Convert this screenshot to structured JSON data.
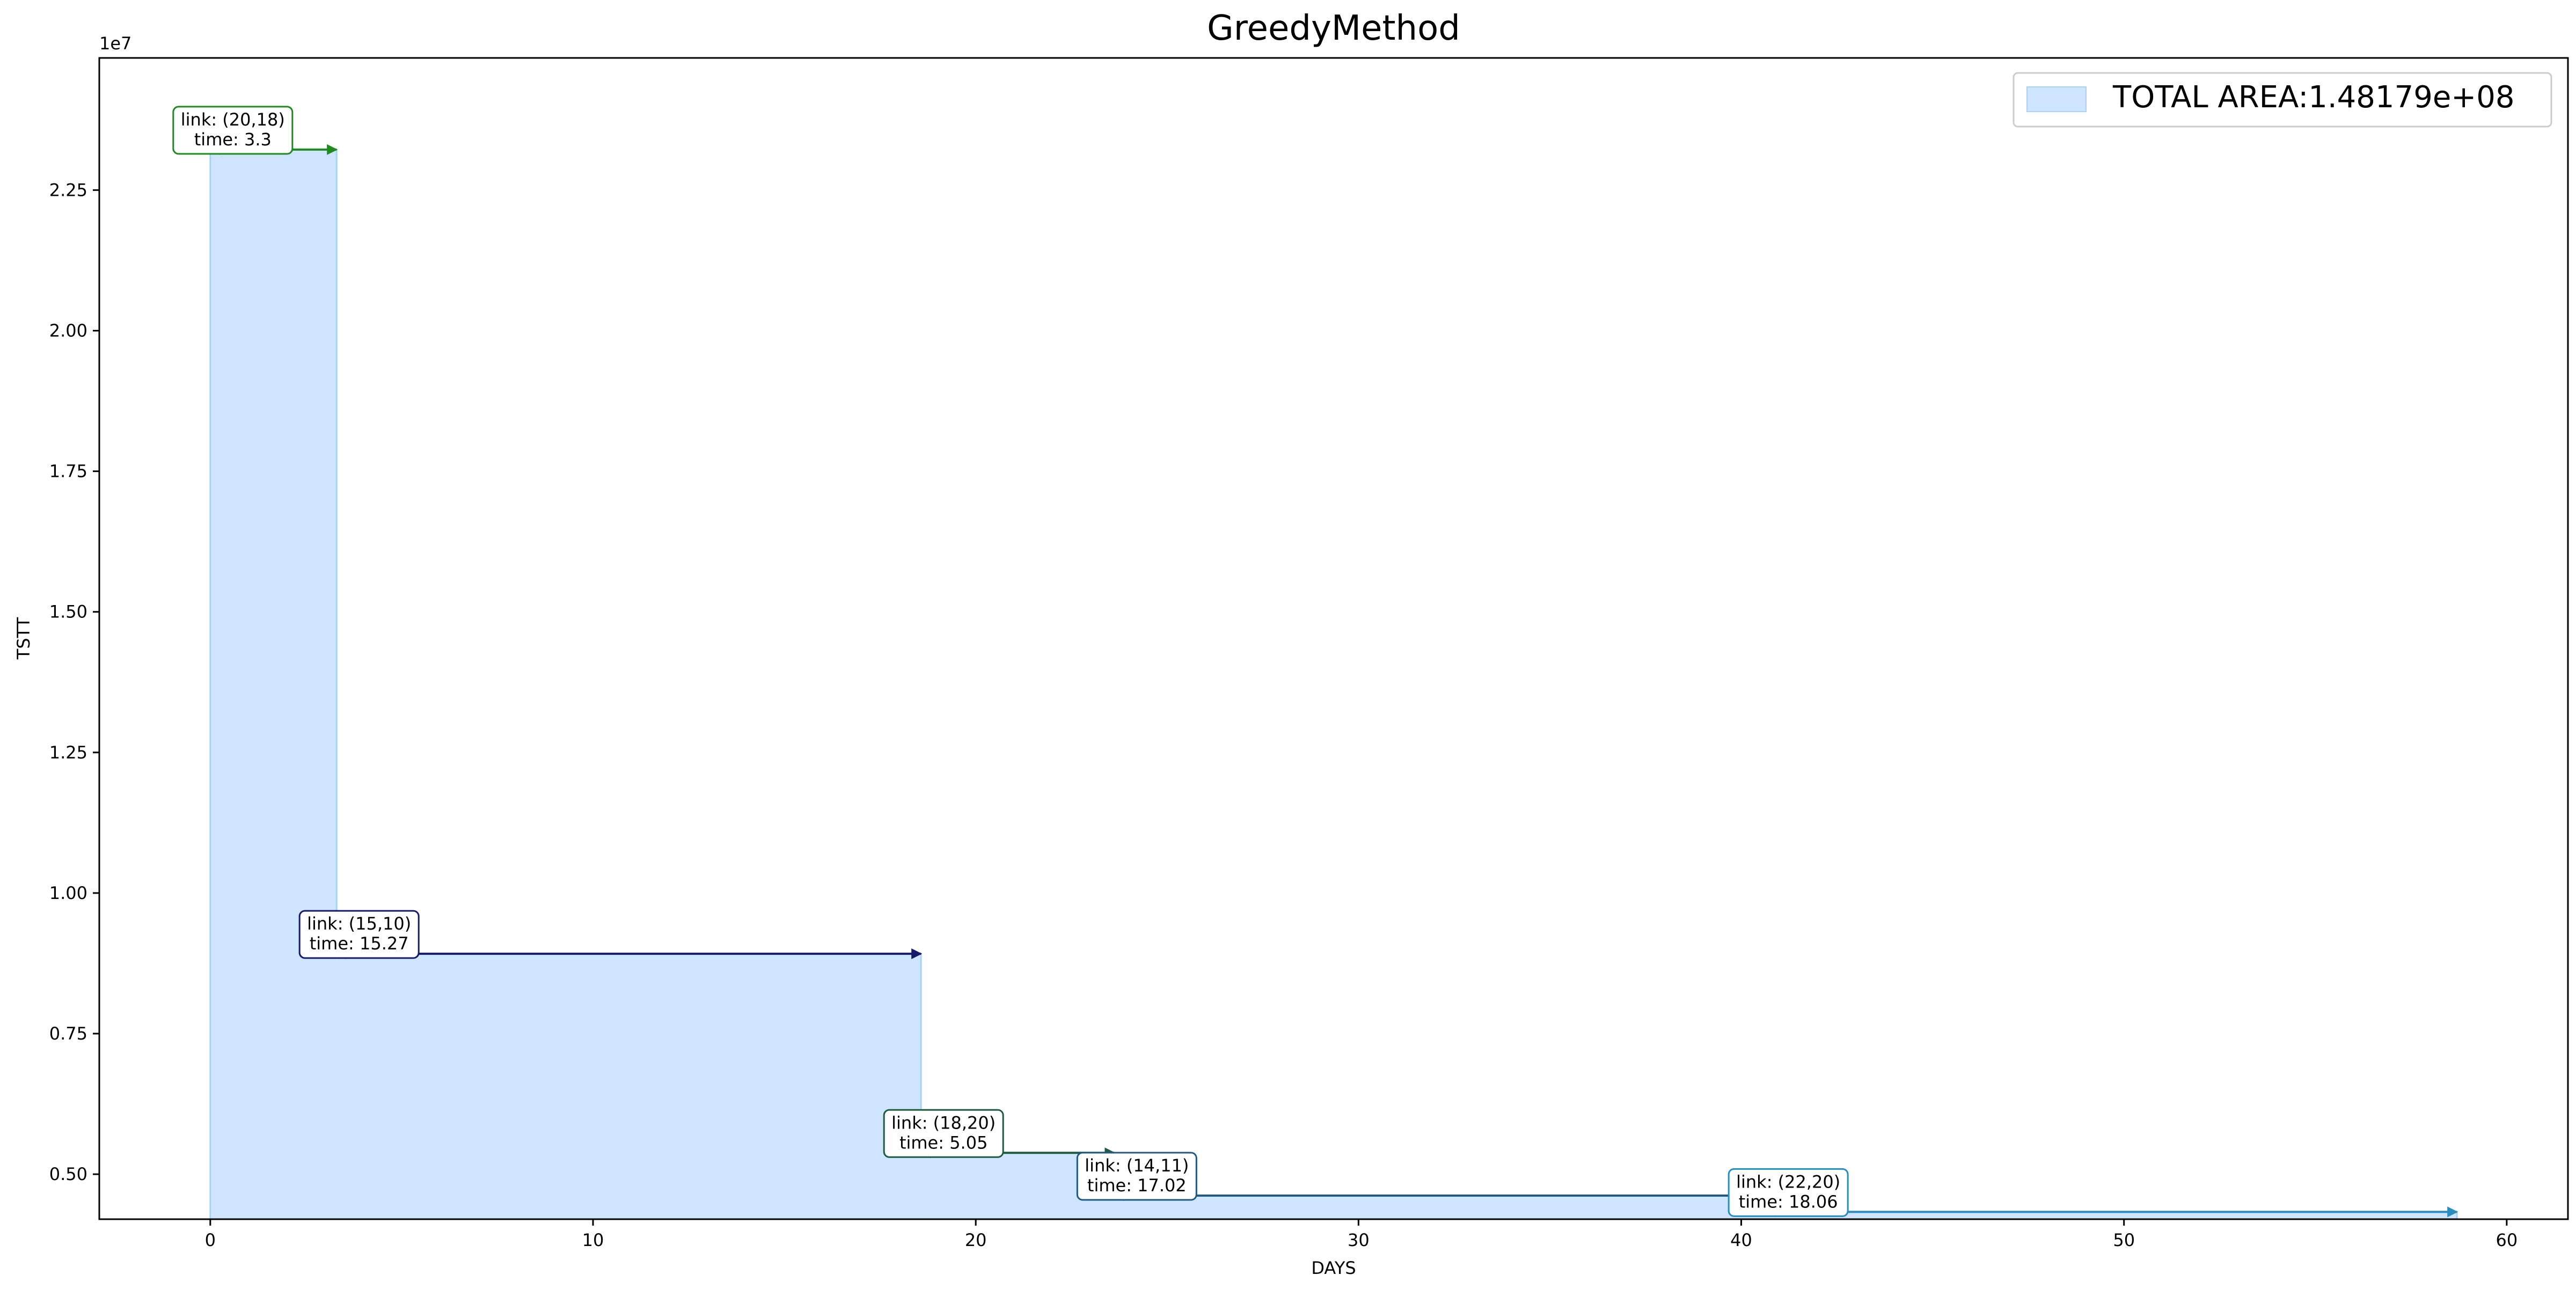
{
  "chart_data": {
    "type": "area",
    "title": "GreedyMethod",
    "xlabel": "DAYS",
    "ylabel": "TSTT",
    "y_offset_label": "1e7",
    "xlim": [
      -2.9,
      61.6
    ],
    "ylim": [
      4.2,
      24.85
    ],
    "y_units_scale": 10000000,
    "x_ticks": [
      0,
      10,
      20,
      30,
      40,
      50,
      60
    ],
    "x_tick_labels": [
      "0",
      "10",
      "20",
      "30",
      "40",
      "50",
      "60"
    ],
    "y_ticks": [
      5.0,
      7.5,
      10.0,
      12.5,
      15.0,
      17.5,
      20.0,
      22.5
    ],
    "y_tick_labels": [
      "0.50",
      "0.75",
      "1.00",
      "1.25",
      "1.50",
      "1.75",
      "2.00",
      "2.25"
    ],
    "grid": false,
    "legend": {
      "placement": "top-right",
      "entries": [
        {
          "label": "TOTAL AREA:1.48179e+08",
          "color": "#cfe4fe"
        }
      ]
    },
    "fill_color": "#cfe4fe",
    "edge_color": "#a9d3f2",
    "steps": [
      {
        "x_start": 0.0,
        "x_end": 3.3,
        "y": 23.22,
        "link": "link: (20,18)",
        "time": "time: 3.3",
        "color": "#1f8a1f"
      },
      {
        "x_start": 3.3,
        "x_end": 18.57,
        "y": 8.92,
        "link": "link: (15,10)",
        "time": "time: 15.27",
        "color": "#171a6b"
      },
      {
        "x_start": 18.57,
        "x_end": 23.62,
        "y": 5.38,
        "link": "link: (18,20)",
        "time": "time: 5.05",
        "color": "#1e5b3c"
      },
      {
        "x_start": 23.62,
        "x_end": 40.64,
        "y": 4.62,
        "link": "link: (14,11)",
        "time": "time: 17.02",
        "color": "#1f5a86"
      },
      {
        "x_start": 40.64,
        "x_end": 58.7,
        "y": 4.33,
        "link": "link: (22,20)",
        "time": "time: 18.06",
        "color": "#2b8cbf"
      }
    ]
  }
}
